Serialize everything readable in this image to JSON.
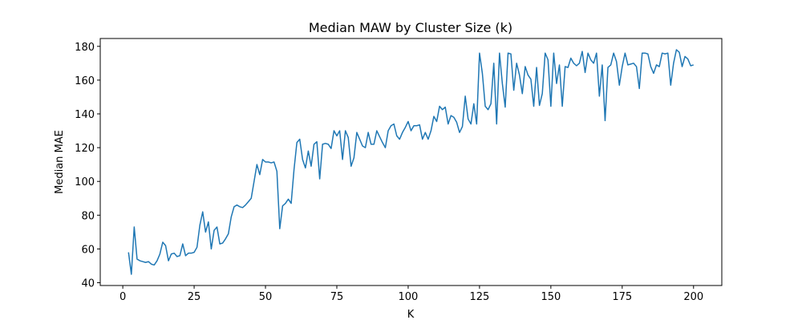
{
  "chart_data": {
    "type": "line",
    "title": "Median MAW by Cluster Size (k)",
    "x_label": "K",
    "y_label": "Median MAE",
    "x": [
      2,
      3,
      4,
      5,
      6,
      7,
      8,
      9,
      10,
      11,
      12,
      13,
      14,
      15,
      16,
      17,
      18,
      19,
      20,
      21,
      22,
      23,
      24,
      25,
      26,
      27,
      28,
      29,
      30,
      31,
      32,
      33,
      34,
      35,
      36,
      37,
      38,
      39,
      40,
      41,
      42,
      43,
      44,
      45,
      46,
      47,
      48,
      49,
      50,
      51,
      52,
      53,
      54,
      55,
      56,
      57,
      58,
      59,
      60,
      61,
      62,
      63,
      64,
      65,
      66,
      67,
      68,
      69,
      70,
      71,
      72,
      73,
      74,
      75,
      76,
      77,
      78,
      79,
      80,
      81,
      82,
      83,
      84,
      85,
      86,
      87,
      88,
      89,
      90,
      91,
      92,
      93,
      94,
      95,
      96,
      97,
      98,
      99,
      100,
      101,
      102,
      103,
      104,
      105,
      106,
      107,
      108,
      109,
      110,
      111,
      112,
      113,
      114,
      115,
      116,
      117,
      118,
      119,
      120,
      121,
      122,
      123,
      124,
      125,
      126,
      127,
      128,
      129,
      130,
      131,
      132,
      133,
      134,
      135,
      136,
      137,
      138,
      139,
      140,
      141,
      142,
      143,
      144,
      145,
      146,
      147,
      148,
      149,
      150,
      151,
      152,
      153,
      154,
      155,
      156,
      157,
      158,
      159,
      160,
      161,
      162,
      163,
      164,
      165,
      166,
      167,
      168,
      169,
      170,
      171,
      172,
      173,
      174,
      175,
      176,
      177,
      178,
      179,
      180,
      181,
      182,
      183,
      184,
      185,
      186,
      187,
      188,
      189,
      190,
      191,
      192,
      193,
      194,
      195,
      196,
      197,
      198,
      199,
      200
    ],
    "series": [
      {
        "name": "Median MAE",
        "color": "#1f77b4",
        "values": [
          58,
          45,
          73,
          54,
          53,
          52.5,
          52,
          52.5,
          51,
          50.5,
          53,
          57,
          64,
          62,
          53,
          57,
          57.5,
          55.5,
          56,
          63,
          56,
          57.5,
          57.5,
          58,
          61,
          74,
          82,
          70,
          76,
          60,
          71,
          73,
          63,
          63.5,
          66,
          69,
          79,
          85,
          86,
          85,
          84.5,
          86,
          88,
          90,
          100,
          110,
          104,
          113,
          111.5,
          111.5,
          111,
          111.5,
          106,
          72,
          85.5,
          87,
          89.5,
          87,
          107,
          123,
          125,
          113,
          108,
          118,
          109,
          122,
          123.5,
          101.5,
          122,
          122.5,
          122,
          119.5,
          130,
          127,
          130,
          113,
          130,
          126,
          109,
          114,
          129,
          125,
          121,
          120,
          129,
          122,
          122,
          130,
          126.5,
          123,
          120,
          130,
          133,
          134,
          127,
          125,
          129,
          132,
          135.5,
          130,
          133,
          133,
          133.5,
          125,
          129,
          125,
          130,
          138.5,
          135.5,
          144.5,
          142.5,
          144,
          134,
          139,
          138,
          135,
          129,
          132.5,
          150.5,
          137,
          134,
          146,
          134,
          176,
          164,
          144.5,
          142.5,
          146,
          170,
          134,
          176,
          158,
          144,
          176,
          175.5,
          154,
          170,
          163,
          152,
          168,
          163,
          160.5,
          144.5,
          167.5,
          145,
          152,
          176,
          172,
          144.5,
          176,
          158,
          169,
          144.5,
          168,
          167.5,
          173,
          170,
          168.5,
          170,
          177,
          164.5,
          176,
          172,
          170,
          176,
          150.5,
          169,
          136,
          167.5,
          169,
          176,
          171,
          157,
          168,
          176,
          169,
          169.5,
          170,
          168,
          155,
          176,
          176,
          175.5,
          168,
          164,
          169,
          168,
          176,
          175.5,
          176,
          157,
          170,
          178,
          176.5,
          168,
          174,
          172.5,
          168.5,
          169
        ]
      }
    ],
    "xlim": [
      -7.9,
      209.9
    ],
    "ylim": [
      38.35,
      184.65
    ],
    "xticks": [
      0,
      25,
      50,
      75,
      100,
      125,
      150,
      175,
      200
    ],
    "yticks": [
      40,
      60,
      80,
      100,
      120,
      140,
      160,
      180
    ]
  }
}
